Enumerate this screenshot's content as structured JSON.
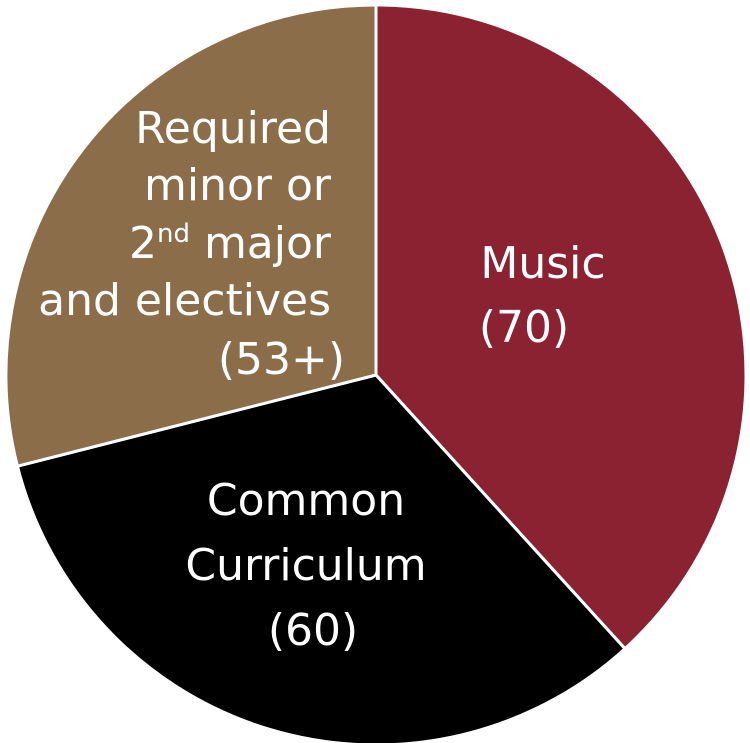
{
  "chart_data": {
    "type": "pie",
    "slices": [
      {
        "name": "Music",
        "value_label": "(70)",
        "value": 70,
        "color": "#8B2232"
      },
      {
        "name": "Common Curriculum",
        "value_label": "(60)",
        "value": 60,
        "color": "#000000"
      },
      {
        "name": "Required minor or 2nd major and electives",
        "value_label": "(53+)",
        "value": 53,
        "color": "#8B6D4A"
      }
    ],
    "labels": {
      "music": {
        "line1": "Music",
        "line2": "(70)"
      },
      "common": {
        "line1": "Common",
        "line2": "Curriculum",
        "line3": "(60)"
      },
      "required": {
        "line1": "Required",
        "line2": "minor or",
        "line3_prefix": "2",
        "line3_sup": "nd",
        "line3_suffix": " major",
        "line4": "and electives",
        "line5": "(53+)"
      }
    }
  }
}
